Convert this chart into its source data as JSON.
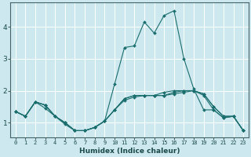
{
  "title": "",
  "xlabel": "Humidex (Indice chaleur)",
  "ylabel": "",
  "bg_color": "#cde8ee",
  "line_color": "#1a6e6e",
  "grid_color": "#ffffff",
  "xlim": [
    -0.5,
    23.5
  ],
  "ylim": [
    0.55,
    4.75
  ],
  "yticks": [
    1,
    2,
    3,
    4
  ],
  "xticks": [
    0,
    1,
    2,
    3,
    4,
    5,
    6,
    7,
    8,
    9,
    10,
    11,
    12,
    13,
    14,
    15,
    16,
    17,
    18,
    19,
    20,
    21,
    22,
    23
  ],
  "lines": [
    {
      "x": [
        0,
        1,
        2,
        3,
        4,
        5,
        6,
        7,
        8,
        9,
        10,
        11,
        12,
        13,
        14,
        15,
        16,
        17,
        18,
        19,
        20,
        21,
        22,
        23
      ],
      "y": [
        1.35,
        1.2,
        1.65,
        1.55,
        1.2,
        1.0,
        0.75,
        0.75,
        0.85,
        1.05,
        1.4,
        1.75,
        1.85,
        1.85,
        1.85,
        1.85,
        1.95,
        2.0,
        2.0,
        1.9,
        1.5,
        1.2,
        1.2,
        0.75
      ]
    },
    {
      "x": [
        0,
        1,
        2,
        3,
        4,
        5,
        6,
        7,
        8,
        9,
        10,
        11,
        12,
        13,
        14,
        15,
        16,
        17,
        18,
        19,
        20,
        21,
        22,
        23
      ],
      "y": [
        1.35,
        1.2,
        1.65,
        1.55,
        1.2,
        1.0,
        0.75,
        0.75,
        0.85,
        1.05,
        2.2,
        3.35,
        3.4,
        4.15,
        3.8,
        4.35,
        4.5,
        3.0,
        2.05,
        1.4,
        1.4,
        1.15,
        1.2,
        0.75
      ]
    },
    {
      "x": [
        0,
        1,
        2,
        3,
        4,
        5,
        6,
        7,
        8,
        9,
        10,
        11,
        12,
        13,
        14,
        15,
        16,
        17,
        18,
        19,
        20,
        21,
        22,
        23
      ],
      "y": [
        1.35,
        1.2,
        1.65,
        1.55,
        1.2,
        1.0,
        0.75,
        0.75,
        0.85,
        1.05,
        1.4,
        1.75,
        1.85,
        1.85,
        1.85,
        1.95,
        2.0,
        2.0,
        2.0,
        1.9,
        1.5,
        1.2,
        1.2,
        0.75
      ]
    },
    {
      "x": [
        0,
        1,
        2,
        3,
        4,
        5,
        6,
        7,
        8,
        9,
        10,
        11,
        12,
        13,
        14,
        15,
        16,
        17,
        18,
        19,
        20,
        21,
        22,
        23
      ],
      "y": [
        1.35,
        1.2,
        1.65,
        1.45,
        1.2,
        0.95,
        0.75,
        0.75,
        0.85,
        1.05,
        1.4,
        1.7,
        1.8,
        1.85,
        1.85,
        1.85,
        1.9,
        1.95,
        2.0,
        1.85,
        1.4,
        1.15,
        1.2,
        0.75
      ]
    }
  ],
  "xtick_fontsize": 5.0,
  "ytick_fontsize": 6.5,
  "xlabel_fontsize": 6.5
}
